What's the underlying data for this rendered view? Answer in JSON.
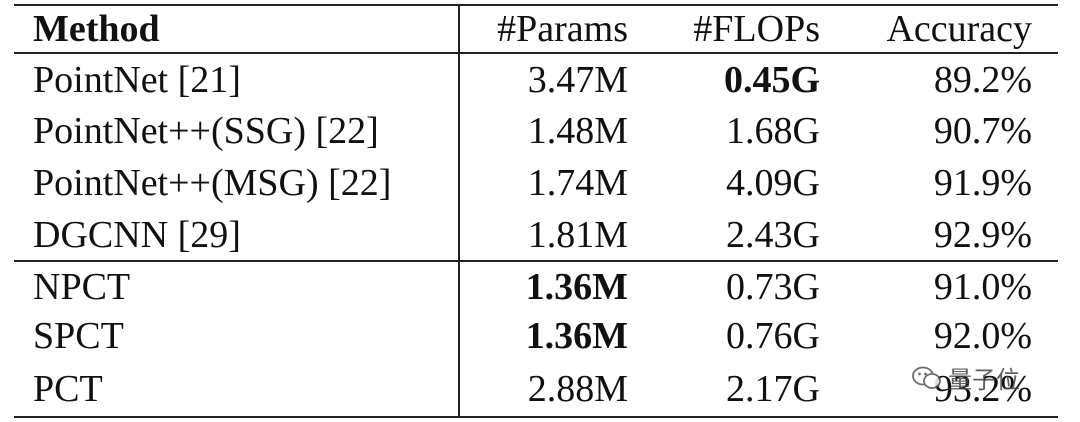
{
  "table": {
    "header": [
      "Method",
      "#Params",
      "#FLOPs",
      "Accuracy"
    ],
    "rows": [
      [
        "PointNet [21]",
        "3.47M",
        "0.45G",
        "89.2%"
      ],
      [
        "PointNet++(SSG) [22]",
        "1.48M",
        "1.68G",
        "90.7%"
      ],
      [
        "PointNet++(MSG) [22]",
        "1.74M",
        "4.09G",
        "91.9%"
      ],
      [
        "DGCNN [29]",
        "1.81M",
        "2.43G",
        "92.9%"
      ],
      [
        "NPCT",
        "1.36M",
        "0.73G",
        "91.0%"
      ],
      [
        "SPCT",
        "1.36M",
        "0.76G",
        "92.0%"
      ],
      [
        "PCT",
        "2.88M",
        "2.17G",
        "93.2%"
      ]
    ]
  },
  "watermark": "量子位"
}
